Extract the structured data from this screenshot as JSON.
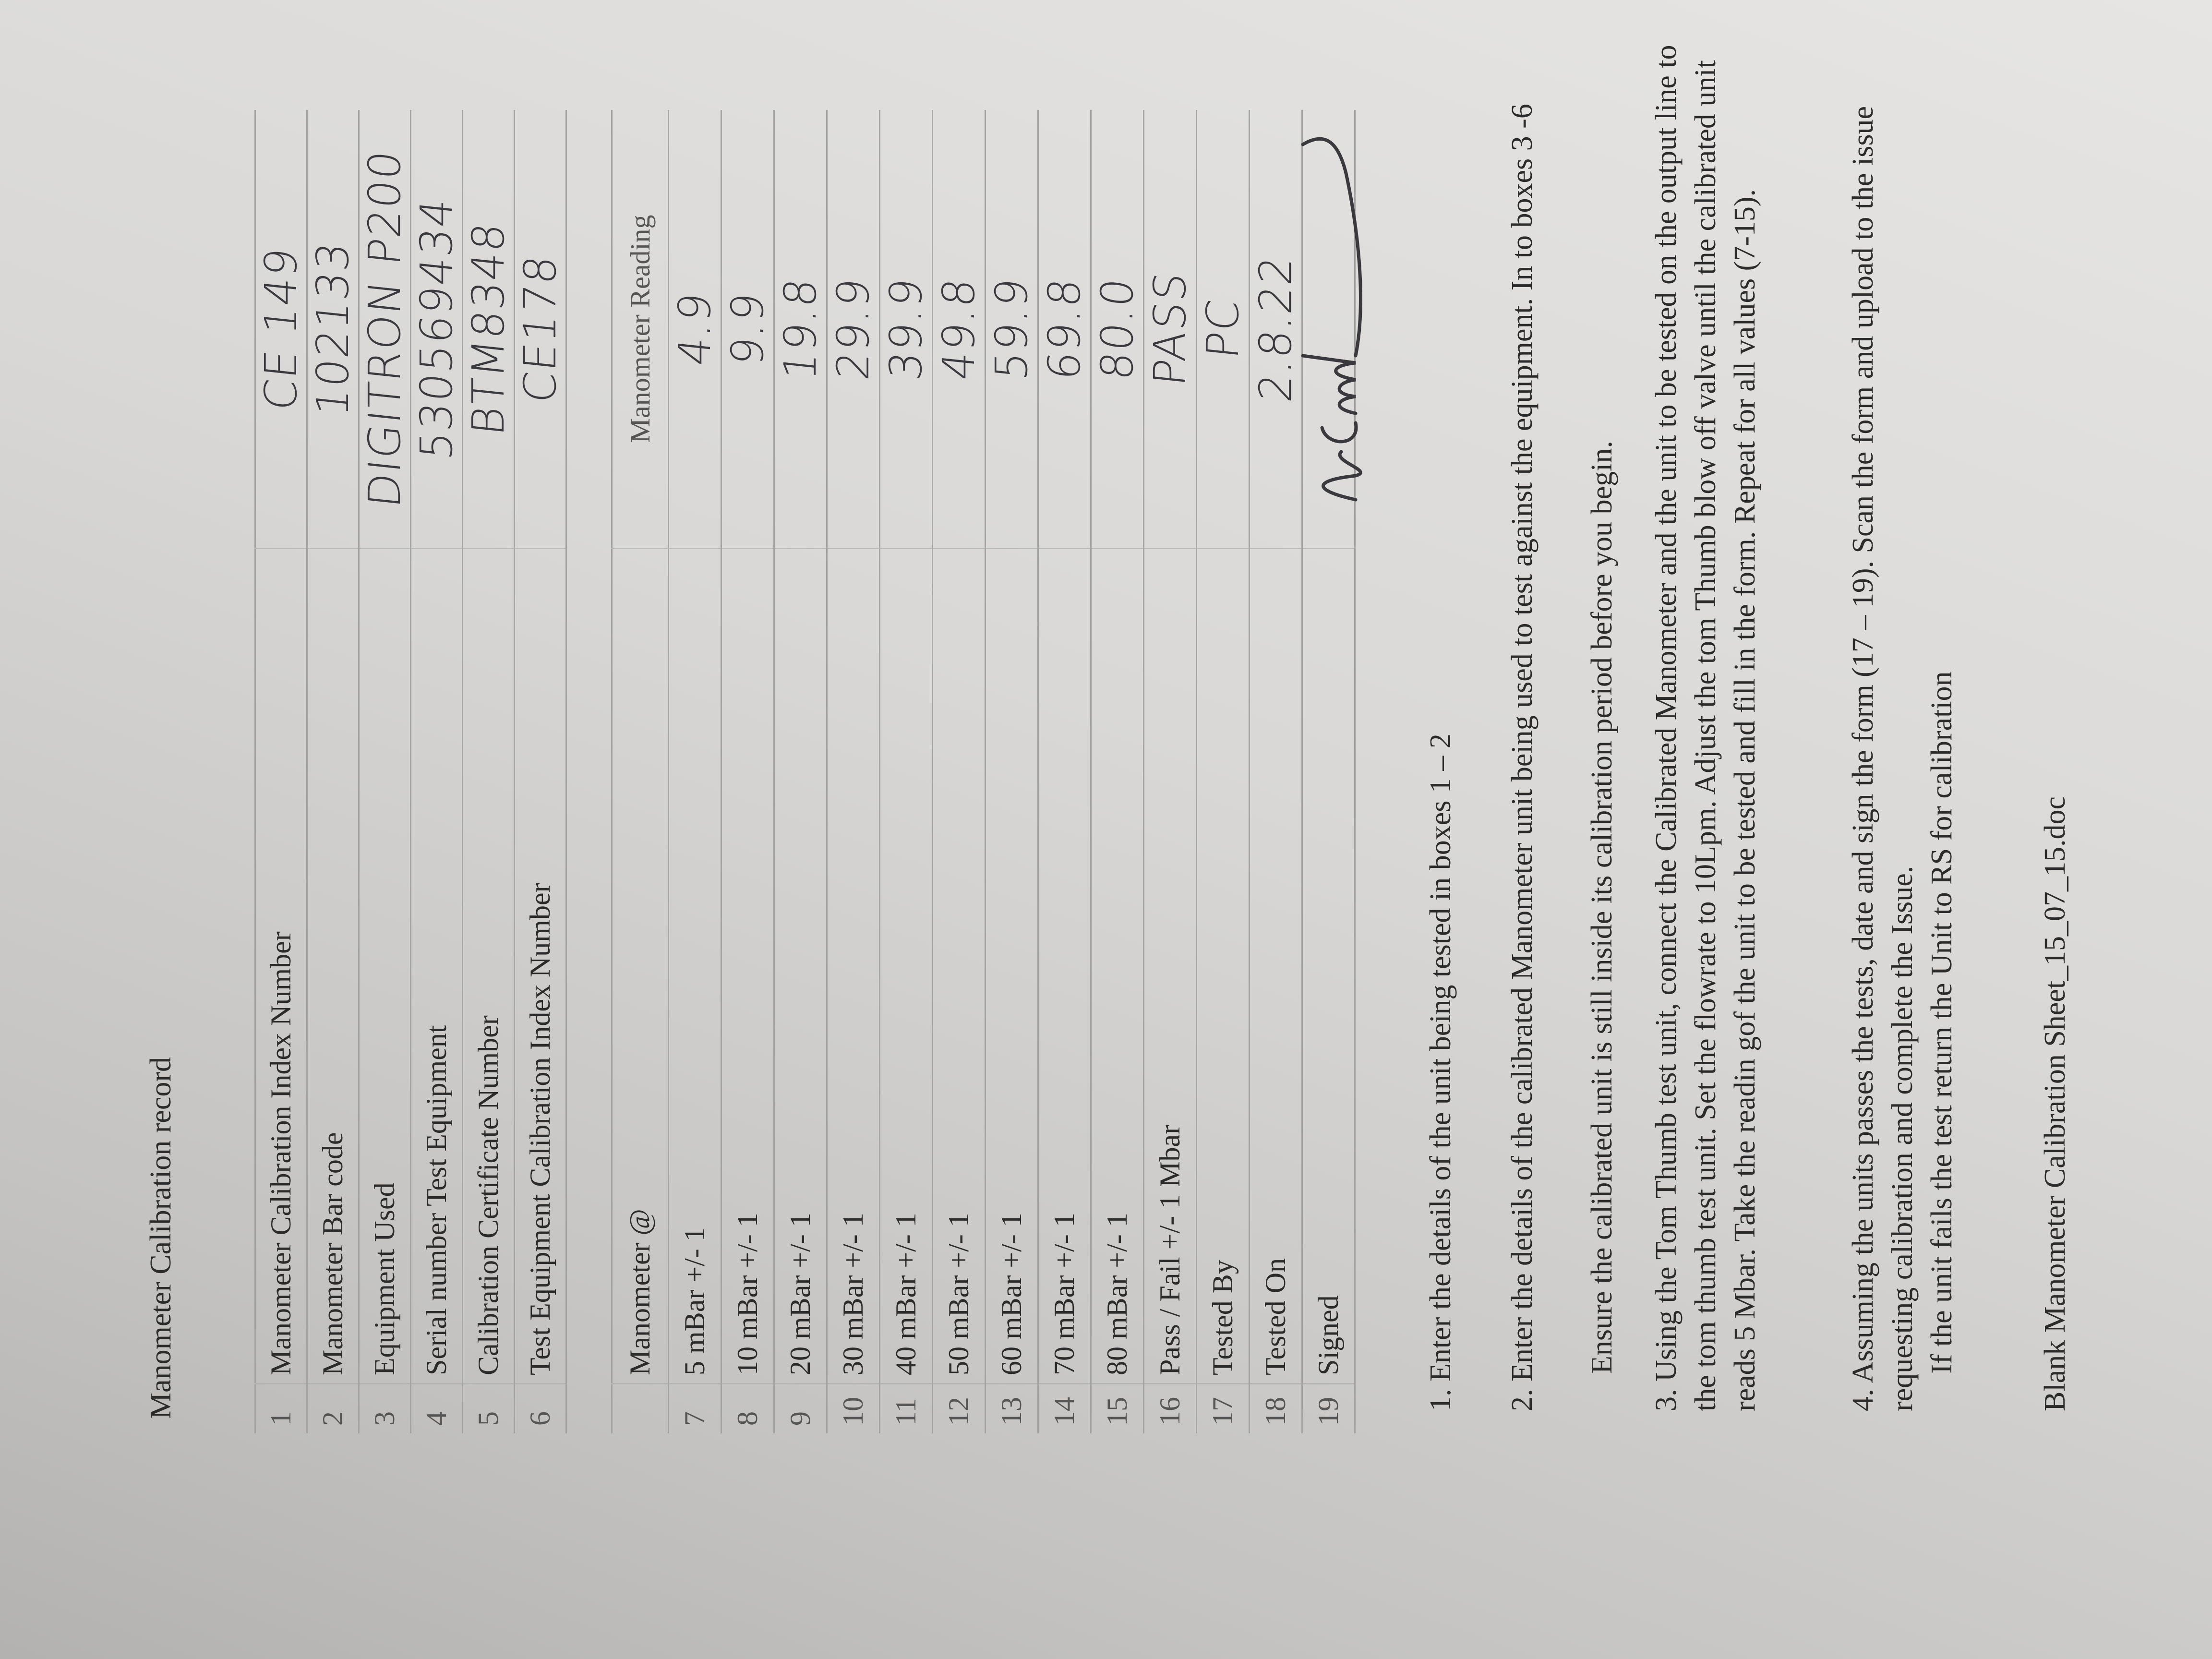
{
  "title": "Manometer Calibration record",
  "details_table": [
    {
      "num": "1",
      "label": "Manometer Calibration Index Number",
      "value": "CE 149"
    },
    {
      "num": "2",
      "label": "Manometer Bar code",
      "value": "102133"
    },
    {
      "num": "3",
      "label": "Equipment Used",
      "value": "DIGITRON P200"
    },
    {
      "num": "4",
      "label": "Serial number Test Equipment",
      "value": "530569434"
    },
    {
      "num": "5",
      "label": "Calibration Certificate Number",
      "value": "BTM8348"
    },
    {
      "num": "6",
      "label": "Test Equipment Calibration Index Number",
      "value": "CE178"
    }
  ],
  "readings_table": {
    "header_label": "Manometer @",
    "header_value": "Manometer Reading",
    "rows": [
      {
        "num": "7",
        "label": "5 mBar +/- 1",
        "value": "4.9"
      },
      {
        "num": "8",
        "label": "10 mBar  +/- 1",
        "value": "9.9"
      },
      {
        "num": "9",
        "label": "20 mBar  +/- 1",
        "value": "19.8"
      },
      {
        "num": "10",
        "label": "30 mBar  +/- 1",
        "value": "29.9"
      },
      {
        "num": "11",
        "label": "40 mBar  +/- 1",
        "value": "39.9"
      },
      {
        "num": "12",
        "label": "50 mBar  +/- 1",
        "value": "49.8"
      },
      {
        "num": "13",
        "label": "60 mBar  +/- 1",
        "value": "59.9"
      },
      {
        "num": "14",
        "label": "70 mBar  +/- 1",
        "value": "69.8"
      },
      {
        "num": "15",
        "label": "80 mBar  +/- 1",
        "value": "80.0"
      },
      {
        "num": "16",
        "label": "Pass / Fail +/- 1 Mbar",
        "value": "PASS"
      },
      {
        "num": "17",
        "label": "Tested By",
        "value": "PC"
      },
      {
        "num": "18",
        "label": "Tested On",
        "value": "2.8.22"
      },
      {
        "num": "19",
        "label": "Signed",
        "value": ""
      }
    ]
  },
  "instructions": {
    "step1": "1. Enter the details of the unit being tested in boxes 1 – 2",
    "step2": "2. Enter the details of the calibrated Manometer unit being used to test against the equipment. In to boxes 3 -6",
    "step2_note": "Ensure the calibrated unit is still inside its calibration period before you begin.",
    "step3": "3. Using the Tom Thumb test unit, connect the Calibrated Manometer and the unit to be tested on the output line to the tom thumb test unit. Set the flowrate to 10Lpm. Adjust the tom Thumb blow off valve until the calibrated unit reads 5 Mbar. Take the readin gof the unit to be tested and fill in the form. Repeat for all values (7-15).",
    "step4": "4. Assuming the units passes the tests, date and sign the form (17 – 19). Scan the form and upload to the issue requesting calibration and complete the Issue.",
    "step4_note": "If the unit fails the test return the Unit to RS for calibration"
  },
  "footer": "Blank Manometer Calibration Sheet_15_07_15.doc",
  "colors": {
    "ink": "#3a3a3e",
    "print": "#2b2b2b",
    "paper": "#dcdbd9"
  }
}
